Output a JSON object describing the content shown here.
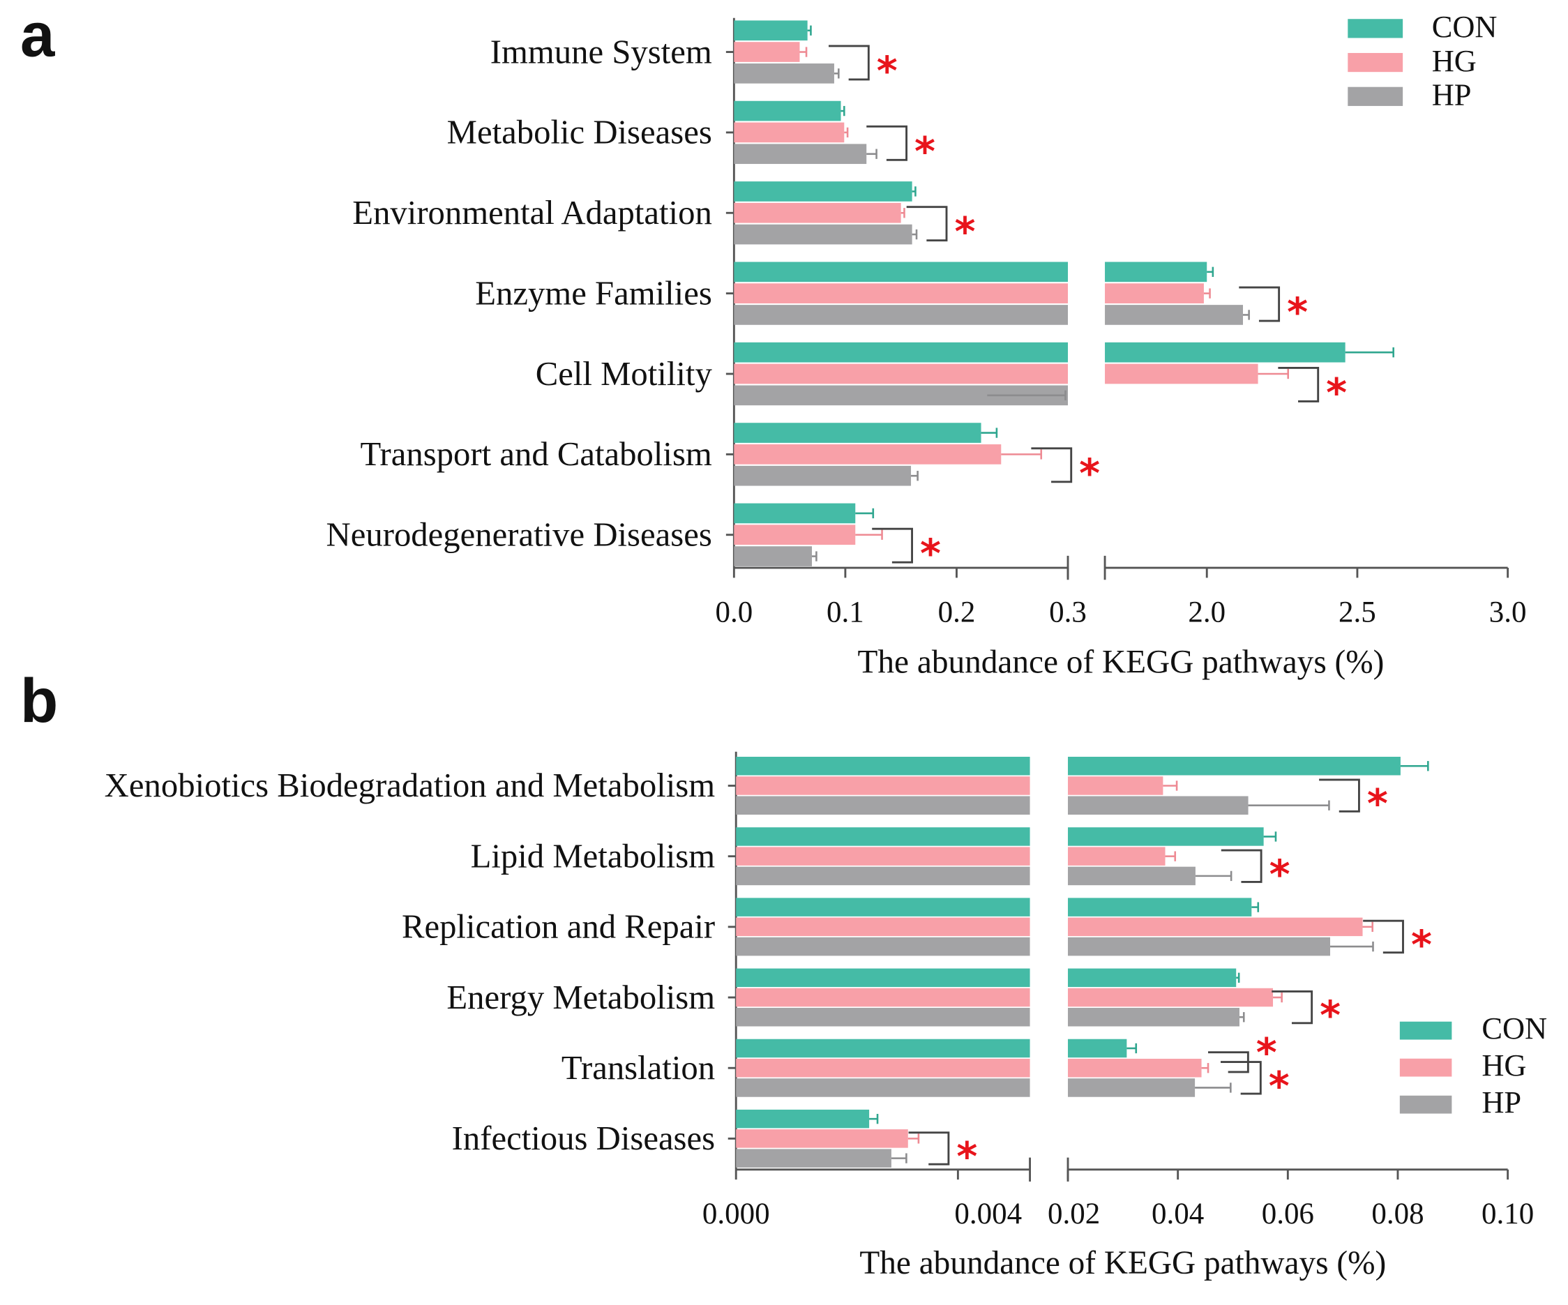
{
  "colors": {
    "CON": "#45bba6",
    "HG": "#f8a0a8",
    "HP": "#a3a3a5",
    "star": "#e8141b",
    "axis": "#555555"
  },
  "chart_data": [
    {
      "panel": "a",
      "type": "bar",
      "orientation": "horizontal",
      "broken_axis": true,
      "categories": [
        "Immune System",
        "Metabolic Diseases",
        "Environmental Adaptation",
        "Enzyme Families",
        "Cell Motility",
        "Transport and Catabolism",
        "Neurodegenerative Diseases"
      ],
      "series": [
        {
          "name": "CON",
          "values": [
            0.066,
            0.096,
            0.16,
            2.0,
            2.46,
            0.222,
            0.109
          ],
          "errors": [
            0.003,
            0.003,
            0.003,
            0.02,
            0.16,
            0.014,
            0.016
          ]
        },
        {
          "name": "HG",
          "values": [
            0.059,
            0.099,
            0.15,
            1.99,
            2.17,
            0.24,
            0.109
          ],
          "errors": [
            0.006,
            0.003,
            0.003,
            0.02,
            0.1,
            0.036,
            0.024
          ]
        },
        {
          "name": "HP",
          "values": [
            0.09,
            0.119,
            0.16,
            2.12,
            1.27,
            0.159,
            0.07
          ],
          "errors": [
            0.004,
            0.009,
            0.004,
            0.02,
            0.26,
            0.006,
            0.004
          ]
        }
      ],
      "significance": [
        "*",
        "*",
        "*",
        "*",
        "*",
        "*",
        "*"
      ],
      "x_segments": [
        {
          "range": [
            0.0,
            0.3
          ],
          "ticks": [
            0.0,
            0.1,
            0.2,
            0.3
          ],
          "tick_labels": [
            "0.0",
            "0.1",
            "0.2",
            "0.3"
          ]
        },
        {
          "range": [
            1.0,
            3.0
          ],
          "ticks": [
            2.0,
            2.5,
            3.0
          ],
          "tick_labels": [
            "2.0",
            "2.5",
            "3.0"
          ]
        }
      ],
      "xlabel": "The abundance of KEGG pathways (%)",
      "legend": {
        "position": "top-right",
        "entries": [
          "CON",
          "HG",
          "HP"
        ]
      }
    },
    {
      "panel": "b",
      "type": "bar",
      "orientation": "horizontal",
      "broken_axis": true,
      "categories": [
        "Xenobiotics Biodegradation and Metabolism",
        "Lipid Metabolism",
        "Replication and Repair",
        "Energy Metabolism",
        "Translation",
        "Infectious Diseases"
      ],
      "series": [
        {
          "name": "CON",
          "values": [
            0.0805,
            0.0556,
            0.0534,
            0.0506,
            0.0307,
            0.0024
          ],
          "errors": [
            0.005,
            0.0022,
            0.0012,
            0.0005,
            0.0017,
            0.00015
          ]
        },
        {
          "name": "HG",
          "values": [
            0.0373,
            0.0377,
            0.0736,
            0.0573,
            0.0443,
            0.0031
          ],
          "errors": [
            0.0025,
            0.0018,
            0.0018,
            0.0016,
            0.0012,
            0.00019
          ]
        },
        {
          "name": "HP",
          "values": [
            0.0528,
            0.0432,
            0.0677,
            0.0512,
            0.0431,
            0.0028
          ],
          "errors": [
            0.0147,
            0.0065,
            0.0078,
            0.0008,
            0.0065,
            0.00027
          ]
        }
      ],
      "significance": [
        "*",
        "*",
        "*",
        "*",
        "* *",
        "*"
      ],
      "x_segments": [
        {
          "range": [
            0.0,
            0.004
          ],
          "ticks": [
            0.0,
            0.004
          ],
          "tick_labels": [
            "0.000",
            "0.004"
          ]
        },
        {
          "range": [
            0.02,
            0.1
          ],
          "ticks": [
            0.02,
            0.04,
            0.06,
            0.08,
            0.1
          ],
          "tick_labels": [
            "0.02",
            "0.04",
            "0.06",
            "0.08",
            "0.10"
          ]
        }
      ],
      "xlabel": "The abundance of KEGG pathways (%)",
      "legend": {
        "position": "bottom-right",
        "entries": [
          "CON",
          "HG",
          "HP"
        ]
      }
    }
  ]
}
